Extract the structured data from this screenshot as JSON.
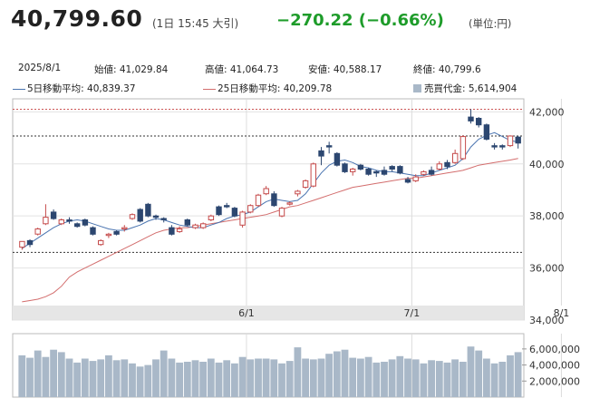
{
  "header": {
    "price": "40,799.60",
    "price_time": "(1日 15:45 大引)",
    "change": "−270.22 (−0.66%)",
    "unit": "(単位:円)"
  },
  "info": {
    "date": "2025/8/1",
    "open": "始値: 41,029.84",
    "high": "高値: 41,064.73",
    "low": "安値: 40,588.17",
    "close": "終値: 40,799.6",
    "ma5": "5日移動平均: 40,839.37",
    "ma25": "25日移動平均: 40,209.78",
    "volume": "売買代金: 5,614,904"
  },
  "colors": {
    "up": "#c54a4a",
    "down": "#2c4770",
    "ma5": "#4a74b0",
    "ma25": "#d36d6d",
    "volume": "#a9b8c8",
    "change": "#1e9c2a"
  },
  "chart_data": {
    "type": "candlestick",
    "x_tick_labels": [
      "6/1",
      "7/1",
      "8/1"
    ],
    "y_ticks": [
      "42,000",
      "40,000",
      "38,000",
      "36,000",
      "34,000"
    ],
    "y_ticks_values": [
      42000,
      40000,
      38000,
      36000,
      34000
    ],
    "ylim": [
      34000,
      42500
    ],
    "volume_ticks": [
      "6,000,000",
      "4,000,000",
      "2,000,000"
    ],
    "volume_tick_values": [
      6000000,
      4000000,
      2000000
    ],
    "volume_lim": [
      0,
      7000000
    ],
    "ref_lines": [
      42100,
      41070,
      36600
    ],
    "month_start_index": [
      29,
      50,
      69
    ],
    "candles": [
      [
        36800,
        37020,
        36700,
        37000
      ],
      [
        37050,
        36900,
        36800,
        37100
      ],
      [
        37300,
        37500,
        37250,
        37550
      ],
      [
        37700,
        37950,
        37650,
        38450
      ],
      [
        38150,
        37900,
        37850,
        38250
      ],
      [
        37700,
        37850,
        37650,
        37900
      ],
      [
        37850,
        37800,
        37700,
        37950
      ],
      [
        37700,
        37600,
        37550,
        37750
      ],
      [
        37850,
        37650,
        37600,
        37900
      ],
      [
        37550,
        37300,
        37250,
        37600
      ],
      [
        36900,
        37050,
        36850,
        37100
      ],
      [
        37250,
        37300,
        37150,
        37350
      ],
      [
        37400,
        37300,
        37250,
        37450
      ],
      [
        37500,
        37550,
        37400,
        37650
      ],
      [
        37900,
        38050,
        37850,
        38100
      ],
      [
        38250,
        37800,
        37750,
        38300
      ],
      [
        38450,
        38000,
        37950,
        38500
      ],
      [
        38000,
        37950,
        37850,
        38050
      ],
      [
        37900,
        37850,
        37750,
        37950
      ],
      [
        37550,
        37300,
        37250,
        37650
      ],
      [
        37400,
        37500,
        37350,
        37600
      ],
      [
        37850,
        37650,
        37600,
        37900
      ],
      [
        37550,
        37650,
        37500,
        37700
      ],
      [
        37550,
        37700,
        37500,
        37750
      ],
      [
        37850,
        38000,
        37800,
        38050
      ],
      [
        38350,
        38050,
        38000,
        38400
      ],
      [
        38400,
        38350,
        38300,
        38500
      ],
      [
        38300,
        38000,
        37950,
        38350
      ],
      [
        37650,
        38150,
        37550,
        38200
      ],
      [
        38150,
        38400,
        38100,
        38450
      ],
      [
        38400,
        38800,
        38350,
        38850
      ],
      [
        38850,
        39050,
        38800,
        39150
      ],
      [
        38850,
        38400,
        38350,
        38950
      ],
      [
        38000,
        38300,
        37950,
        38350
      ],
      [
        38450,
        38500,
        38400,
        38550
      ],
      [
        38850,
        38950,
        38750,
        39000
      ],
      [
        39100,
        39350,
        39050,
        39400
      ],
      [
        39150,
        40000,
        39100,
        40050
      ],
      [
        40500,
        40300,
        39950,
        40650
      ],
      [
        40700,
        40650,
        40400,
        40850
      ],
      [
        40400,
        39950,
        39900,
        40450
      ],
      [
        40000,
        39700,
        39650,
        40050
      ],
      [
        39700,
        39800,
        39550,
        39850
      ],
      [
        39950,
        39800,
        39750,
        40000
      ],
      [
        39800,
        39600,
        39550,
        39850
      ],
      [
        39700,
        39650,
        39500,
        39750
      ],
      [
        39750,
        39600,
        39550,
        39900
      ],
      [
        39900,
        39800,
        39700,
        39950
      ],
      [
        39900,
        39650,
        39600,
        39950
      ],
      [
        39400,
        39300,
        39250,
        39500
      ],
      [
        39350,
        39500,
        39300,
        39600
      ],
      [
        39600,
        39700,
        39550,
        39750
      ],
      [
        39750,
        39600,
        39550,
        39900
      ],
      [
        39800,
        40000,
        39750,
        40100
      ],
      [
        40050,
        39900,
        39800,
        40150
      ],
      [
        40050,
        40400,
        40000,
        40550
      ],
      [
        40200,
        41050,
        40150,
        41100
      ],
      [
        41800,
        41650,
        41550,
        42100
      ],
      [
        41750,
        41500,
        41400,
        41800
      ],
      [
        41500,
        40950,
        40900,
        41550
      ],
      [
        40700,
        40650,
        40550,
        40800
      ],
      [
        40700,
        40650,
        40550,
        40750
      ],
      [
        40700,
        41070,
        40650,
        41100
      ],
      [
        41030,
        40800,
        40590,
        41065
      ]
    ],
    "ma5": [
      36750,
      36950,
      37150,
      37350,
      37550,
      37700,
      37800,
      37850,
      37800,
      37700,
      37600,
      37500,
      37450,
      37450,
      37550,
      37650,
      37800,
      37900,
      37850,
      37750,
      37650,
      37600,
      37550,
      37550,
      37650,
      37750,
      37900,
      38000,
      38050,
      38150,
      38350,
      38550,
      38650,
      38600,
      38550,
      38600,
      38850,
      39250,
      39650,
      39950,
      40100,
      40150,
      40050,
      39900,
      39850,
      39750,
      39700,
      39700,
      39650,
      39600,
      39550,
      39550,
      39650,
      39750,
      39850,
      39950,
      40200,
      40650,
      40950,
      41100,
      41200,
      41050,
      40900,
      40839
    ],
    "ma25": [
      34700,
      34750,
      34800,
      34900,
      35050,
      35300,
      35650,
      35850,
      36000,
      36150,
      36300,
      36450,
      36600,
      36750,
      36900,
      37050,
      37200,
      37350,
      37450,
      37500,
      37550,
      37550,
      37600,
      37650,
      37700,
      37750,
      37800,
      37850,
      37900,
      37950,
      38000,
      38050,
      38150,
      38250,
      38350,
      38400,
      38500,
      38600,
      38700,
      38800,
      38900,
      39000,
      39100,
      39150,
      39200,
      39250,
      39300,
      39350,
      39400,
      39450,
      39450,
      39500,
      39550,
      39600,
      39650,
      39700,
      39750,
      39850,
      39950,
      40000,
      40050,
      40100,
      40150,
      40210
    ],
    "volume": [
      5200000,
      4900000,
      5800000,
      5000000,
      5900000,
      5600000,
      4800000,
      4300000,
      4800000,
      4500000,
      4700000,
      5200000,
      4600000,
      4700000,
      4200000,
      3800000,
      4000000,
      4700000,
      5800000,
      4800000,
      4300000,
      4400000,
      4600000,
      4400000,
      4800000,
      4300000,
      4600000,
      4200000,
      5000000,
      4700000,
      4800000,
      4800000,
      4700000,
      4200000,
      4500000,
      6200000,
      4800000,
      4700000,
      4800000,
      5400000,
      5700000,
      5900000,
      4900000,
      4800000,
      5000000,
      4300000,
      4400000,
      4700000,
      5100000,
      4800000,
      4700000,
      4200000,
      4600000,
      4500000,
      4300000,
      4700000,
      4400000,
      6300000,
      5800000,
      4800000,
      4200000,
      4400000,
      5200000,
      5600000
    ]
  }
}
